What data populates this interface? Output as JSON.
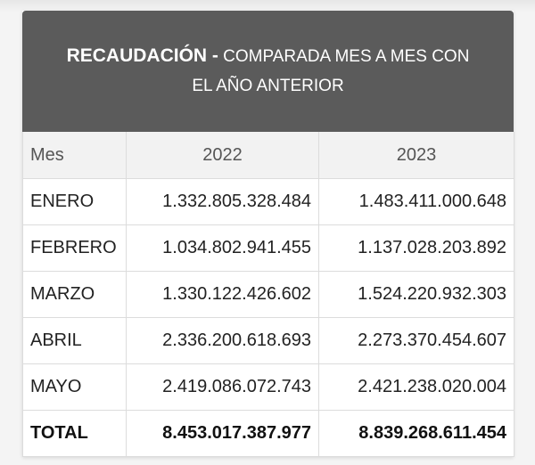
{
  "header": {
    "title_strong": "RECAUDACIÓN -",
    "title_rest": " COMPARADA MES A MES CON",
    "title_line2": "EL AÑO ANTERIOR"
  },
  "table": {
    "columns": [
      "Mes",
      "2022",
      "2023"
    ],
    "rows": [
      {
        "month": "ENERO",
        "y2022": "1.332.805.328.484",
        "y2023": "1.483.411.000.648"
      },
      {
        "month": "FEBRERO",
        "y2022": "1.034.802.941.455",
        "y2023": "1.137.028.203.892"
      },
      {
        "month": "MARZO",
        "y2022": "1.330.122.426.602",
        "y2023": "1.524.220.932.303"
      },
      {
        "month": "ABRIL",
        "y2022": "2.336.200.618.693",
        "y2023": "2.273.370.454.607"
      },
      {
        "month": "MAYO",
        "y2022": "2.419.086.072.743",
        "y2023": "2.421.238.020.004"
      }
    ],
    "total": {
      "label": "TOTAL",
      "y2022": "8.453.017.387.977",
      "y2023": "8.839.268.611.454"
    }
  }
}
